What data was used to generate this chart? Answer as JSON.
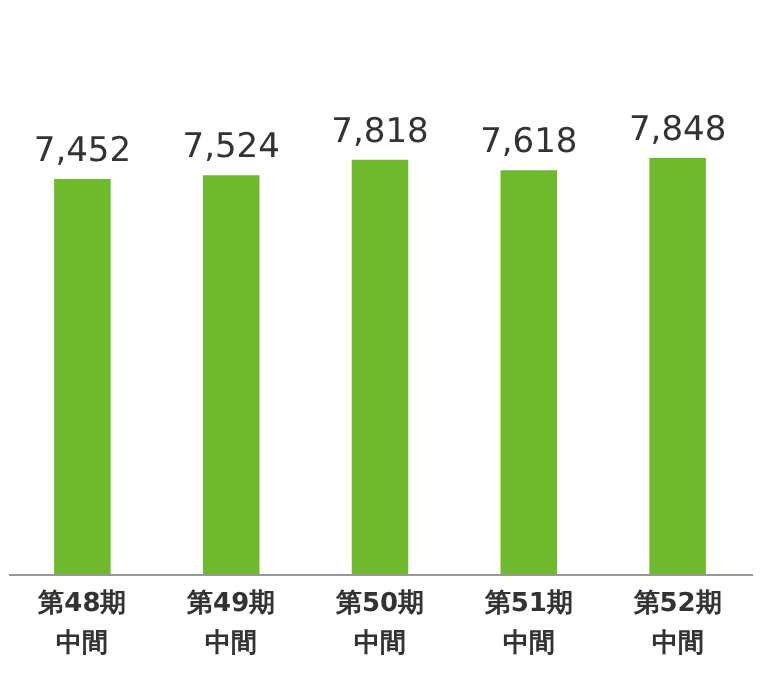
{
  "chart_data": {
    "type": "bar",
    "categories": [
      "第48期中間",
      "第49期中間",
      "第50期中間",
      "第51期中間",
      "第52期中間"
    ],
    "value_labels": [
      "7,452",
      "7,524",
      "7,818",
      "7,618",
      "7,848"
    ],
    "values": [
      7452,
      7524,
      7818,
      7618,
      7848
    ],
    "color": "#6fba2c",
    "grid": false
  }
}
